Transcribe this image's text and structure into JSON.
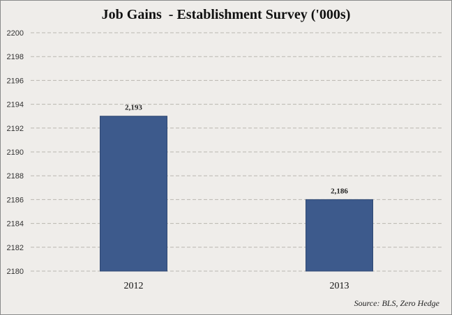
{
  "chart_data": {
    "type": "bar",
    "title": "Job Gains  - Establishment Survey ('000s)",
    "categories": [
      "2012",
      "2013"
    ],
    "values": [
      2193,
      2186
    ],
    "data_labels": [
      "2,193",
      "2,186"
    ],
    "ylim": [
      2180,
      2200
    ],
    "yticks": [
      2180,
      2182,
      2184,
      2186,
      2188,
      2190,
      2192,
      2194,
      2196,
      2198,
      2200
    ],
    "grid": true,
    "gridline_style": "dashed",
    "legend": "none",
    "bar_color": "#3d5a8c",
    "source": "Source: BLS, Zero Hedge"
  }
}
